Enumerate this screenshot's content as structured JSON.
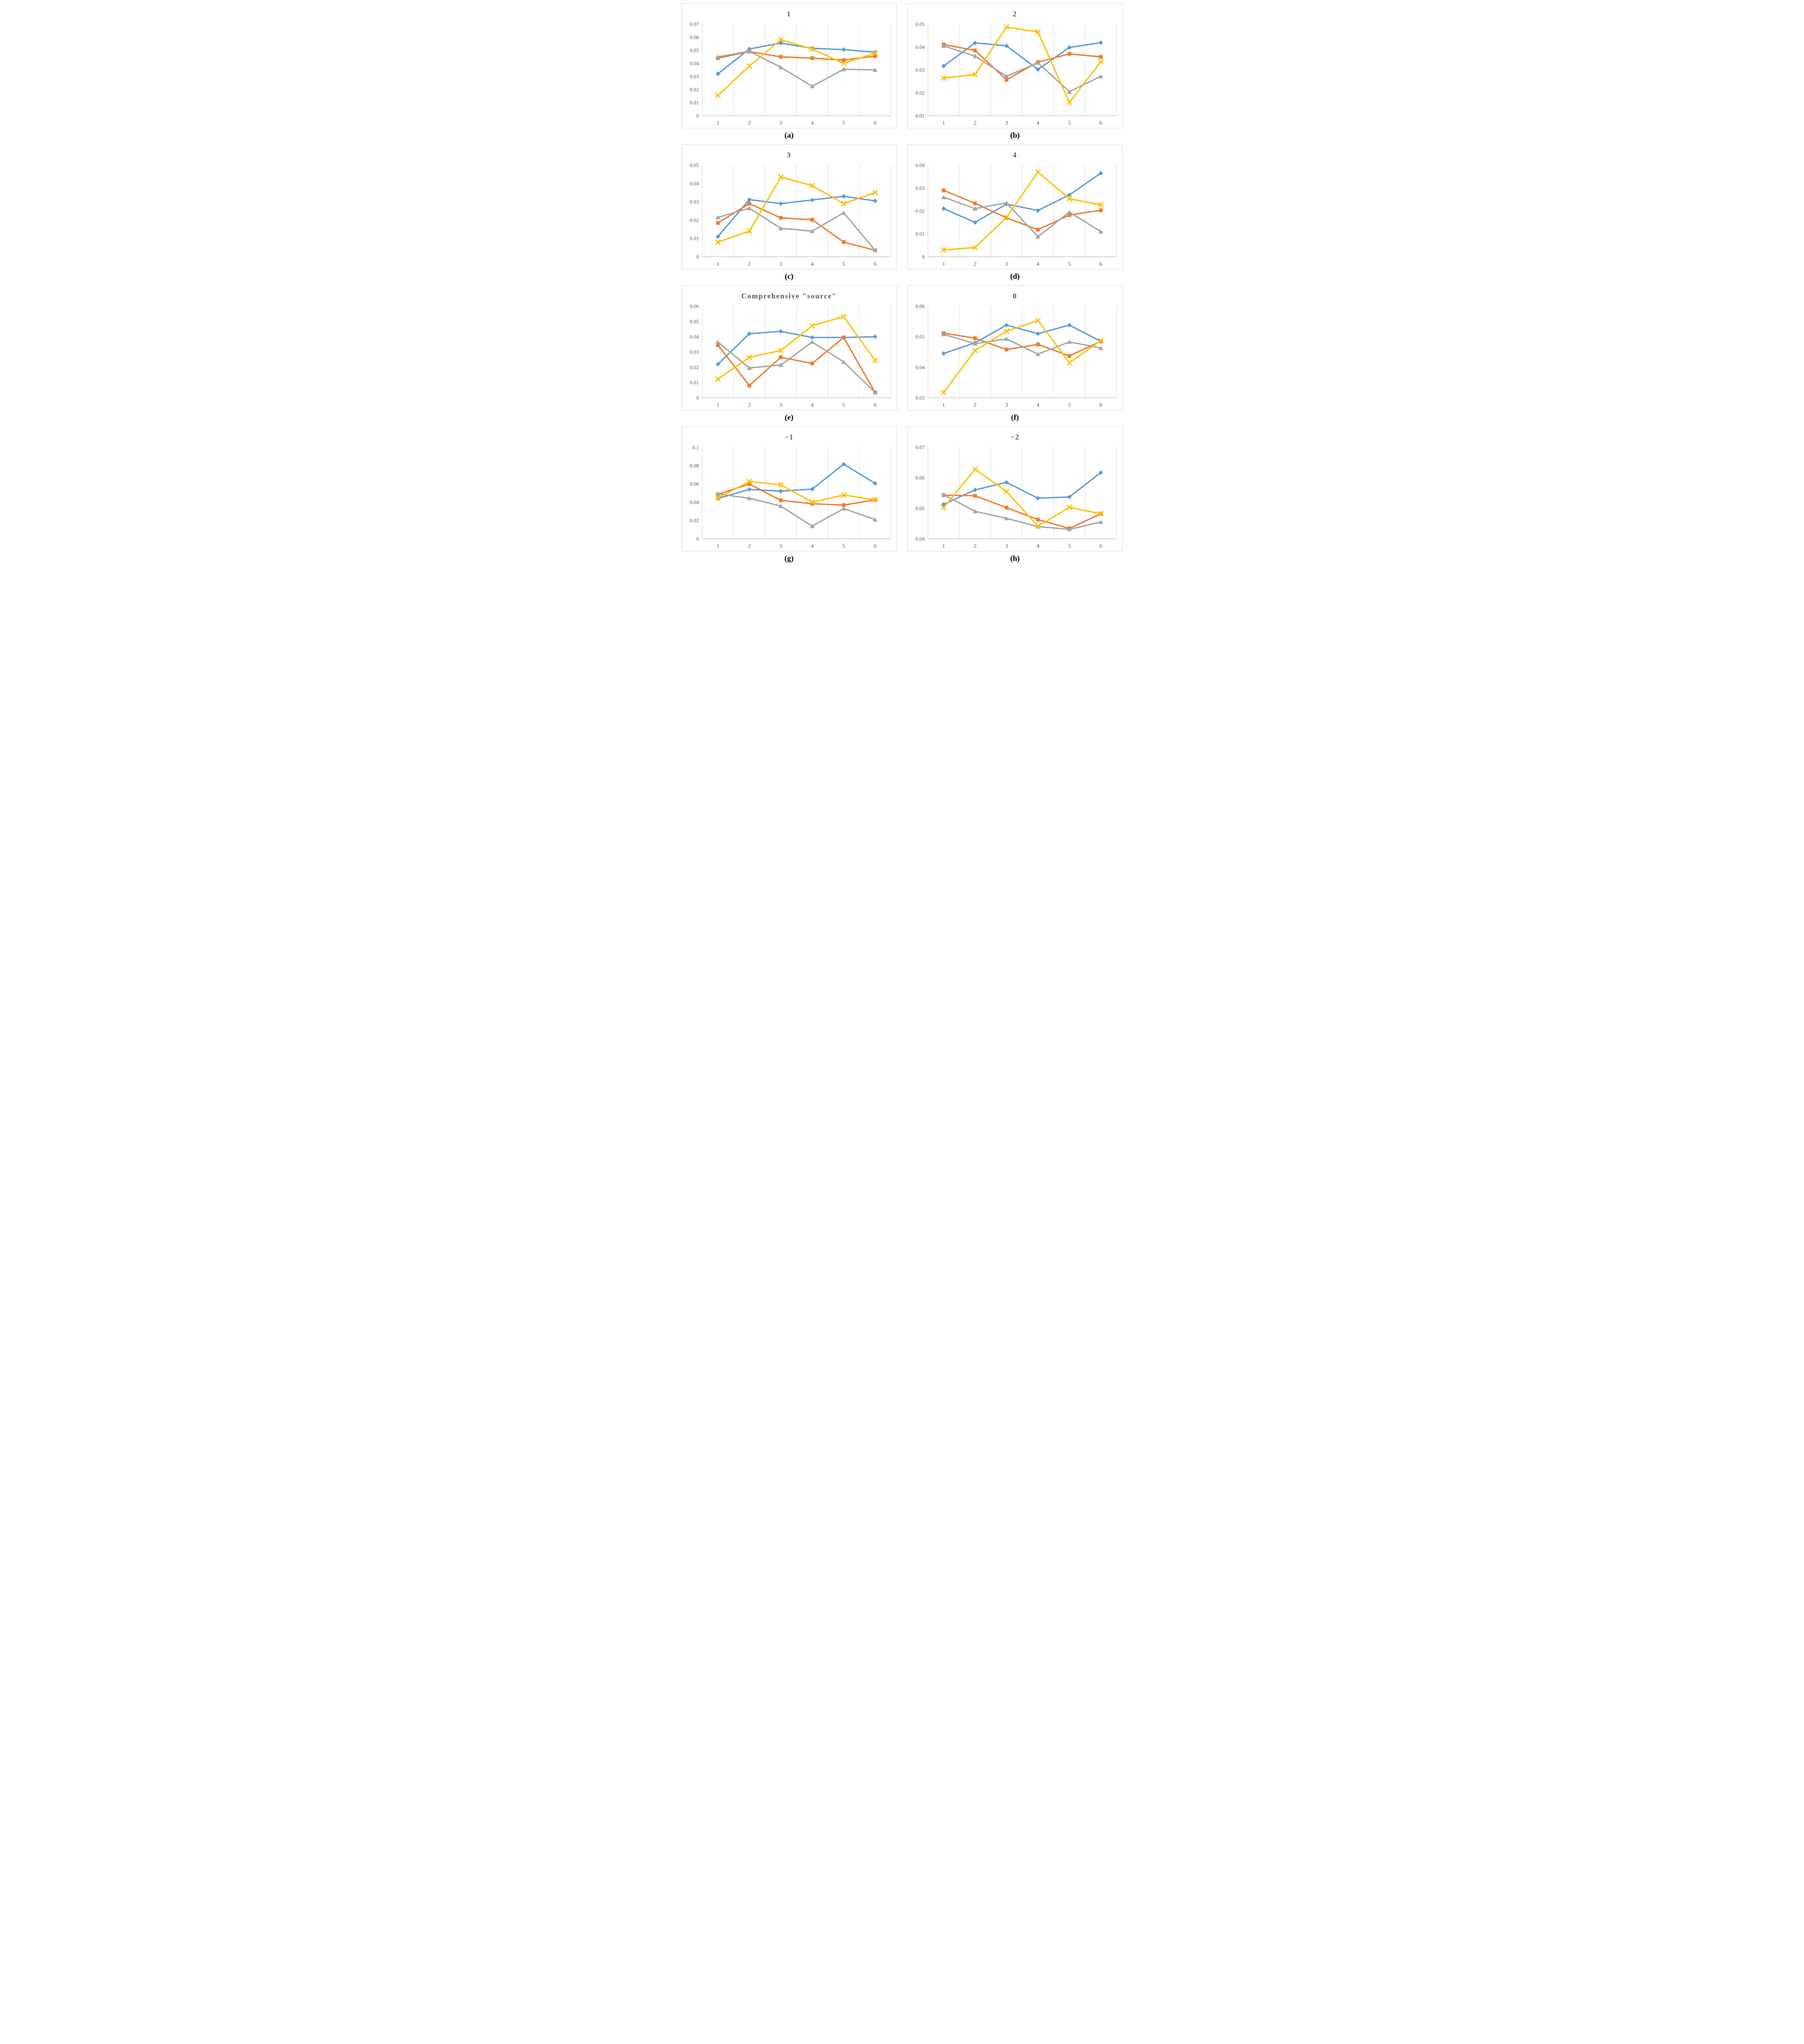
{
  "style": {
    "gridline_color": "#d6d6d6",
    "axis_color": "#bfbfbf",
    "tick_color": "#595959",
    "title_color": "#595959",
    "panel_border": "#d9d9d9",
    "series_colors": {
      "blue": "#5B9BD5",
      "orange": "#ED7D31",
      "gray": "#A5A5A5",
      "yellow": "#FFC000"
    }
  },
  "chart_data": [
    {
      "type": "line",
      "title": "1",
      "caption": "(a)",
      "x_tick_labels": [
        "1",
        "2",
        "3",
        "4",
        "5",
        "6"
      ],
      "ylim": [
        0,
        0.07
      ],
      "y_tick_labels": [
        "0",
        "0.01",
        "0.02",
        "0.03",
        "0.04",
        "0.05",
        "0.06",
        "0.07"
      ],
      "grid": "vertical-only",
      "legend": "none",
      "series": [
        {
          "name": "blue-diamond",
          "marker": "diamond",
          "color": "#5B9BD5",
          "values": [
            0.032,
            0.051,
            0.0555,
            0.0515,
            0.0505,
            0.0485
          ]
        },
        {
          "name": "orange-square",
          "marker": "square",
          "color": "#ED7D31",
          "values": [
            0.044,
            0.049,
            0.045,
            0.044,
            0.0425,
            0.0455
          ]
        },
        {
          "name": "gray-triangle",
          "marker": "triangle",
          "color": "#A5A5A5",
          "values": [
            0.045,
            0.0493,
            0.037,
            0.0225,
            0.0355,
            0.035
          ]
        },
        {
          "name": "yellow-x",
          "marker": "x",
          "color": "#FFC000",
          "values": [
            0.0155,
            0.038,
            0.058,
            0.051,
            0.04,
            0.0478
          ]
        }
      ]
    },
    {
      "type": "line",
      "title": "2",
      "caption": "(b)",
      "x_tick_labels": [
        "1",
        "2",
        "3",
        "4",
        "5",
        "6"
      ],
      "ylim": [
        0.01,
        0.05
      ],
      "y_tick_labels": [
        "0.01",
        "0.02",
        "0.03",
        "0.04",
        "0.05"
      ],
      "grid": "vertical-only",
      "legend": "none",
      "series": [
        {
          "name": "blue-diamond",
          "marker": "diamond",
          "color": "#5B9BD5",
          "values": [
            0.0317,
            0.0418,
            0.0405,
            0.0302,
            0.0398,
            0.0419
          ]
        },
        {
          "name": "orange-square",
          "marker": "square",
          "color": "#ED7D31",
          "values": [
            0.0411,
            0.0385,
            0.0257,
            0.0334,
            0.037,
            0.0357
          ]
        },
        {
          "name": "gray-triangle",
          "marker": "triangle",
          "color": "#A5A5A5",
          "values": [
            0.0405,
            0.036,
            0.0272,
            0.0331,
            0.0205,
            0.0272
          ]
        },
        {
          "name": "yellow-x",
          "marker": "x",
          "color": "#FFC000",
          "values": [
            0.0264,
            0.028,
            0.0487,
            0.0466,
            0.0158,
            0.0336
          ]
        }
      ]
    },
    {
      "type": "line",
      "title": "3",
      "caption": "(c)",
      "x_tick_labels": [
        "1",
        "2",
        "3",
        "4",
        "5",
        "6"
      ],
      "ylim": [
        0,
        0.05
      ],
      "y_tick_labels": [
        "0",
        "0.01",
        "0.02",
        "0.03",
        "0.04",
        "0.05"
      ],
      "grid": "vertical-only",
      "legend": "none",
      "series": [
        {
          "name": "blue-diamond",
          "marker": "diamond",
          "color": "#5B9BD5",
          "values": [
            0.011,
            0.0312,
            0.029,
            0.031,
            0.033,
            0.0305
          ]
        },
        {
          "name": "orange-square",
          "marker": "square",
          "color": "#ED7D31",
          "values": [
            0.0185,
            0.029,
            0.0212,
            0.0202,
            0.008,
            0.0035
          ]
        },
        {
          "name": "gray-triangle",
          "marker": "triangle",
          "color": "#A5A5A5",
          "values": [
            0.0215,
            0.0265,
            0.0155,
            0.014,
            0.024,
            0.0035
          ]
        },
        {
          "name": "yellow-x",
          "marker": "x",
          "color": "#FFC000",
          "values": [
            0.008,
            0.014,
            0.0435,
            0.0388,
            0.029,
            0.035
          ]
        }
      ]
    },
    {
      "type": "line",
      "title": "4",
      "caption": "(d)",
      "x_tick_labels": [
        "1",
        "2",
        "3",
        "4",
        "5",
        "6"
      ],
      "ylim": [
        0,
        0.04
      ],
      "y_tick_labels": [
        "0",
        "0.01",
        "0.02",
        "0.03",
        "0.04"
      ],
      "grid": "vertical-only",
      "legend": "none",
      "series": [
        {
          "name": "blue-diamond",
          "marker": "diamond",
          "color": "#5B9BD5",
          "values": [
            0.021,
            0.015,
            0.023,
            0.0202,
            0.027,
            0.0365
          ]
        },
        {
          "name": "orange-square",
          "marker": "square",
          "color": "#ED7D31",
          "values": [
            0.029,
            0.0233,
            0.017,
            0.0118,
            0.0182,
            0.0203
          ]
        },
        {
          "name": "gray-triangle",
          "marker": "triangle",
          "color": "#A5A5A5",
          "values": [
            0.026,
            0.021,
            0.0235,
            0.0088,
            0.0195,
            0.011
          ]
        },
        {
          "name": "yellow-x",
          "marker": "x",
          "color": "#FFC000",
          "values": [
            0.003,
            0.004,
            0.0172,
            0.037,
            0.0253,
            0.0227
          ]
        }
      ]
    },
    {
      "type": "line",
      "title": "Comprehensive \"source\"",
      "caption": "(e)",
      "x_tick_labels": [
        "1",
        "2",
        "3",
        "4",
        "5",
        "6"
      ],
      "ylim": [
        0,
        0.06
      ],
      "y_tick_labels": [
        "0",
        "0.01",
        "0.02",
        "0.03",
        "0.04",
        "0.05",
        "0.06"
      ],
      "grid": "vertical-only",
      "legend": "none",
      "series": [
        {
          "name": "blue-diamond",
          "marker": "diamond",
          "color": "#5B9BD5",
          "values": [
            0.022,
            0.042,
            0.0435,
            0.0395,
            0.0395,
            0.04
          ]
        },
        {
          "name": "orange-square",
          "marker": "square",
          "color": "#ED7D31",
          "values": [
            0.0345,
            0.008,
            0.0265,
            0.0225,
            0.0395,
            0.0035
          ]
        },
        {
          "name": "gray-triangle",
          "marker": "triangle",
          "color": "#A5A5A5",
          "values": [
            0.0365,
            0.0195,
            0.0215,
            0.0365,
            0.0235,
            0.0035
          ]
        },
        {
          "name": "yellow-x",
          "marker": "x",
          "color": "#FFC000",
          "values": [
            0.0122,
            0.0265,
            0.031,
            0.0472,
            0.0532,
            0.0245
          ]
        }
      ]
    },
    {
      "type": "line",
      "title": "0",
      "caption": "(f)",
      "x_tick_labels": [
        "1",
        "2",
        "3",
        "4",
        "5",
        "6"
      ],
      "ylim": [
        0.03,
        0.06
      ],
      "y_tick_labels": [
        "0.03",
        "0.04",
        "0.05",
        "0.06"
      ],
      "grid": "vertical-only",
      "legend": "none",
      "series": [
        {
          "name": "blue-diamond",
          "marker": "diamond",
          "color": "#5B9BD5",
          "values": [
            0.0445,
            0.048,
            0.0538,
            0.051,
            0.0538,
            0.0485
          ]
        },
        {
          "name": "orange-square",
          "marker": "square",
          "color": "#ED7D31",
          "values": [
            0.0512,
            0.0495,
            0.0458,
            0.0475,
            0.0437,
            0.0485
          ]
        },
        {
          "name": "gray-triangle",
          "marker": "triangle",
          "color": "#A5A5A5",
          "values": [
            0.0508,
            0.0477,
            0.0493,
            0.0443,
            0.0483,
            0.0463
          ]
        },
        {
          "name": "yellow-x",
          "marker": "x",
          "color": "#FFC000",
          "values": [
            0.0317,
            0.0455,
            0.0518,
            0.0553,
            0.0415,
            0.0487
          ]
        }
      ]
    },
    {
      "type": "line",
      "title": "−1",
      "caption": "(g)",
      "x_tick_labels": [
        "1",
        "2",
        "3",
        "4",
        "5",
        "6"
      ],
      "ylim": [
        0,
        0.1
      ],
      "y_tick_labels": [
        "0",
        "0.02",
        "0.04",
        "0.06",
        "0.08",
        "0.1"
      ],
      "grid": "vertical-only",
      "legend": "none",
      "series": [
        {
          "name": "blue-diamond",
          "marker": "diamond",
          "color": "#5B9BD5",
          "values": [
            0.044,
            0.054,
            0.052,
            0.0543,
            0.0815,
            0.0605
          ]
        },
        {
          "name": "orange-square",
          "marker": "square",
          "color": "#ED7D31",
          "values": [
            0.0485,
            0.0598,
            0.042,
            0.0383,
            0.0368,
            0.0425
          ]
        },
        {
          "name": "gray-triangle",
          "marker": "triangle",
          "color": "#A5A5A5",
          "values": [
            0.049,
            0.0443,
            0.0357,
            0.0138,
            0.033,
            0.021
          ]
        },
        {
          "name": "yellow-x",
          "marker": "x",
          "color": "#FFC000",
          "values": [
            0.0445,
            0.0625,
            0.059,
            0.04,
            0.0478,
            0.0425
          ]
        }
      ]
    },
    {
      "type": "line",
      "title": "−2",
      "caption": "(h)",
      "x_tick_labels": [
        "1",
        "2",
        "3",
        "4",
        "5",
        "6"
      ],
      "ylim": [
        0.04,
        0.07
      ],
      "y_tick_labels": [
        "0.04",
        "0.05",
        "0.06",
        "0.07"
      ],
      "grid": "vertical-only",
      "legend": "none",
      "series": [
        {
          "name": "blue-diamond",
          "marker": "diamond",
          "color": "#5B9BD5",
          "values": [
            0.0513,
            0.056,
            0.0585,
            0.0533,
            0.0537,
            0.0617
          ]
        },
        {
          "name": "orange-square",
          "marker": "square",
          "color": "#ED7D31",
          "values": [
            0.0543,
            0.0541,
            0.0502,
            0.0463,
            0.0434,
            0.0482
          ]
        },
        {
          "name": "gray-triangle",
          "marker": "triangle",
          "color": "#A5A5A5",
          "values": [
            0.0545,
            0.049,
            0.0467,
            0.044,
            0.0431,
            0.0455
          ]
        },
        {
          "name": "yellow-x",
          "marker": "x",
          "color": "#FFC000",
          "values": [
            0.0502,
            0.0628,
            0.0555,
            0.0441,
            0.0503,
            0.0482
          ]
        }
      ]
    }
  ]
}
